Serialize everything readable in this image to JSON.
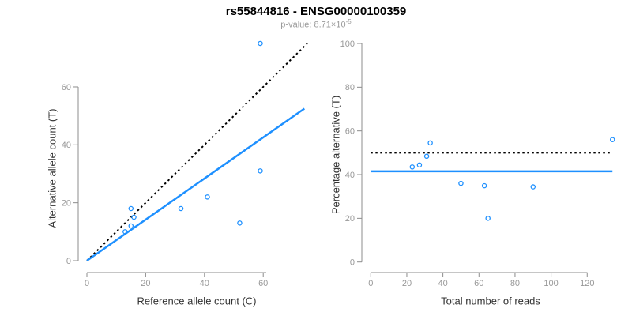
{
  "header": {
    "title": "rs55844816 - ENSG00000100359",
    "pvalue_prefix": "p-value: 8.71×10",
    "pvalue_exponent": "-5"
  },
  "colors": {
    "accent_blue": "#1E90FF",
    "dotted_black": "#000000",
    "axis_line": "#8c8c8c",
    "tick_label": "#999999",
    "axis_title": "#333333",
    "title": "#000000",
    "subtitle": "#9b9b9b"
  },
  "chart_data": [
    {
      "type": "scatter",
      "xlabel": "Reference allele count (C)",
      "ylabel": "Alternative allele count (T)",
      "xlim": [
        0,
        75
      ],
      "ylim": [
        0,
        76
      ],
      "xticks": [
        0,
        20,
        40,
        60
      ],
      "yticks": [
        0,
        20,
        40,
        60
      ],
      "grid": false,
      "legend": "none",
      "points": [
        {
          "x": 13,
          "y": 10
        },
        {
          "x": 15,
          "y": 12
        },
        {
          "x": 16,
          "y": 15
        },
        {
          "x": 15,
          "y": 18
        },
        {
          "x": 32,
          "y": 18
        },
        {
          "x": 41,
          "y": 22
        },
        {
          "x": 52,
          "y": 13
        },
        {
          "x": 59,
          "y": 31
        },
        {
          "x": 59,
          "y": 75
        }
      ],
      "lines": [
        {
          "name": "identity-line",
          "style": "dotted",
          "color": "#000000",
          "x1": 0,
          "y1": 0,
          "x2": 75,
          "y2": 75
        },
        {
          "name": "fit-line",
          "style": "solid",
          "color": "#1E90FF",
          "x1": 0,
          "y1": 0,
          "x2": 74,
          "y2": 52.5
        }
      ]
    },
    {
      "type": "scatter",
      "xlabel": "Total number of reads",
      "ylabel": "Percentage alternative (T)",
      "xlim": [
        0,
        136
      ],
      "ylim": [
        0,
        100
      ],
      "xticks": [
        0,
        20,
        40,
        60,
        80,
        100,
        120
      ],
      "yticks": [
        0,
        20,
        40,
        60,
        80,
        100
      ],
      "grid": false,
      "legend": "none",
      "points": [
        {
          "x": 23,
          "y": 43.5
        },
        {
          "x": 27,
          "y": 44.4
        },
        {
          "x": 31,
          "y": 48.4
        },
        {
          "x": 33,
          "y": 54.5
        },
        {
          "x": 50,
          "y": 36.0
        },
        {
          "x": 63,
          "y": 34.9
        },
        {
          "x": 65,
          "y": 20.0
        },
        {
          "x": 90,
          "y": 34.4
        },
        {
          "x": 134,
          "y": 56.0
        }
      ],
      "lines": [
        {
          "name": "expected-50pct-line",
          "style": "dotted",
          "color": "#000000",
          "x1": 0,
          "y1": 50,
          "x2": 134,
          "y2": 50
        },
        {
          "name": "observed-mean-line",
          "style": "solid",
          "color": "#1E90FF",
          "x1": 0,
          "y1": 41.5,
          "x2": 134,
          "y2": 41.5
        }
      ]
    }
  ]
}
